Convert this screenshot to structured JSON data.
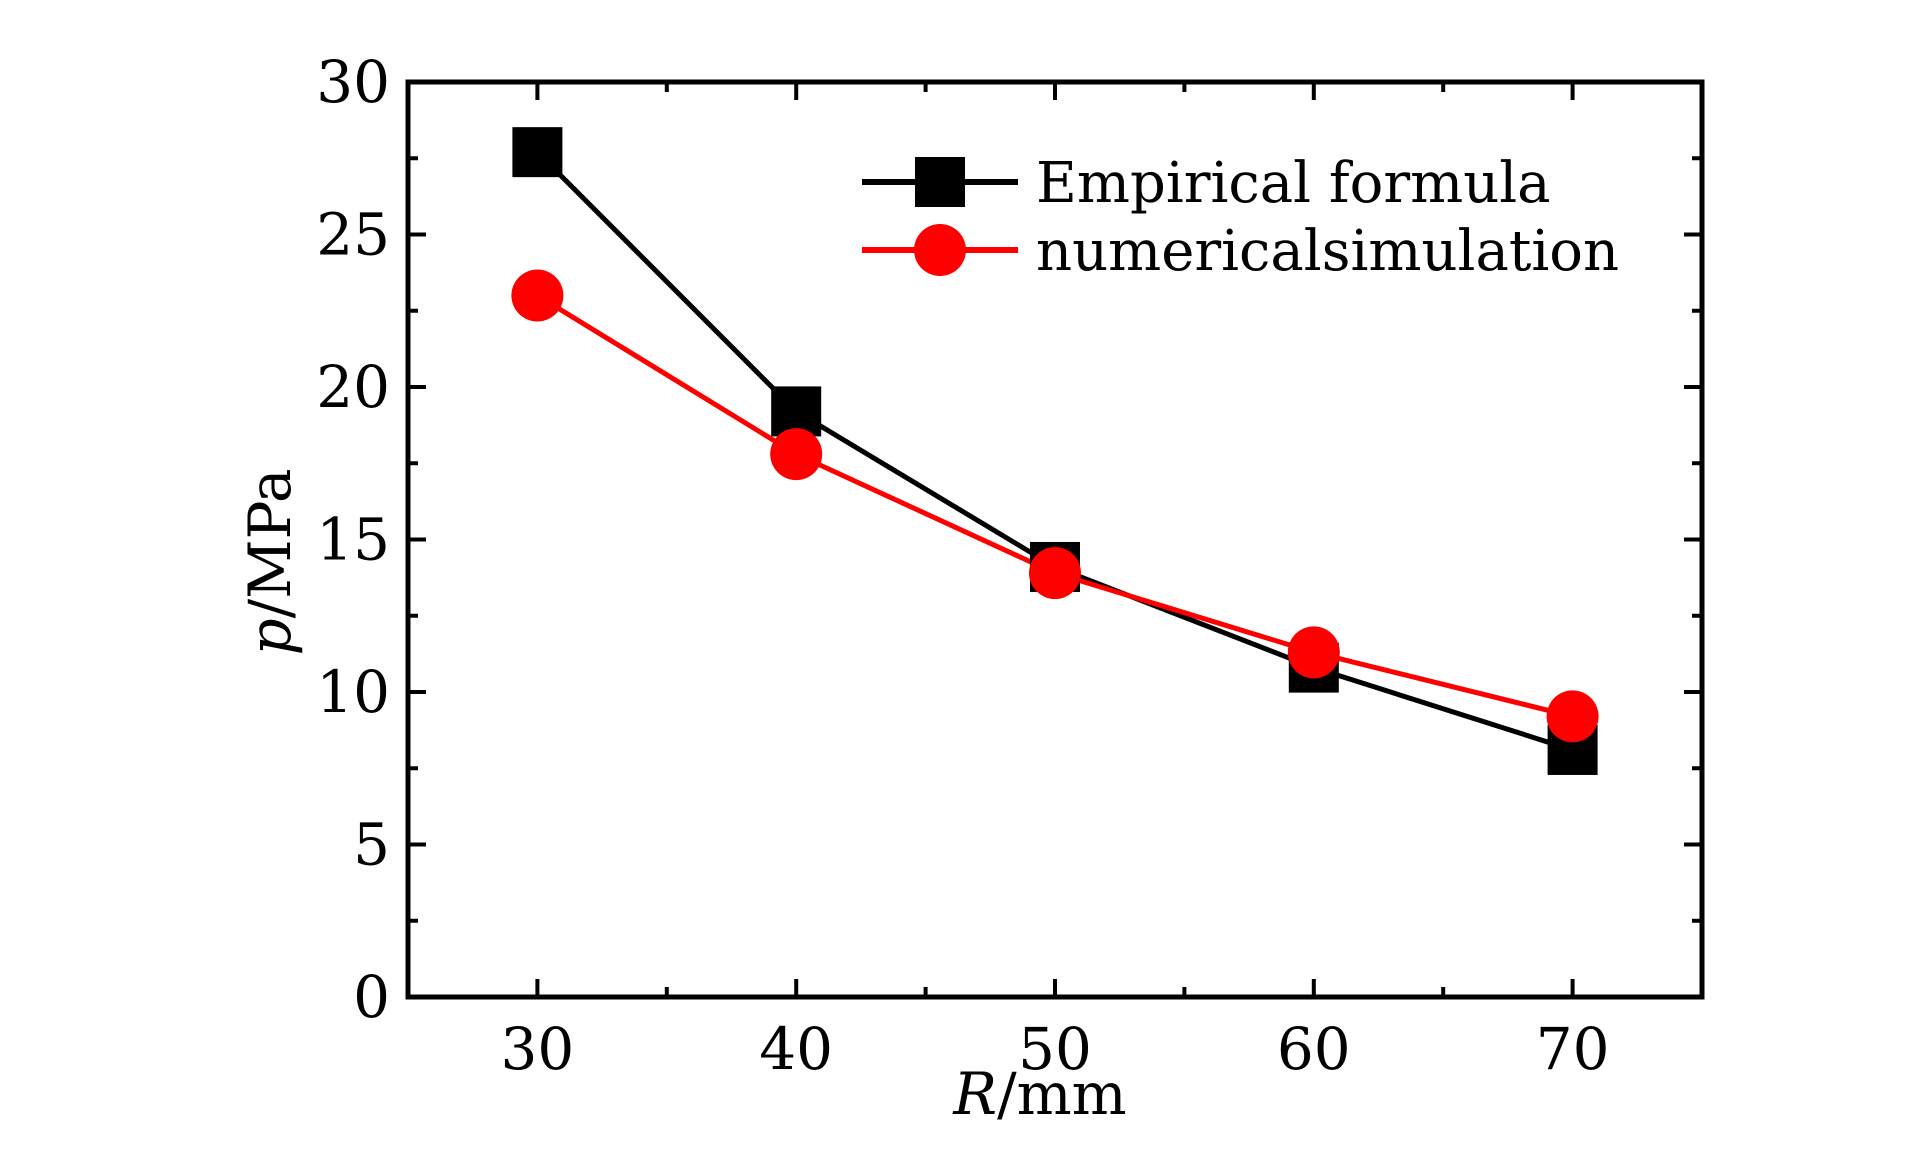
{
  "chart_data": {
    "type": "line",
    "title": "",
    "xlabel": {
      "italic": "R",
      "rest": "/mm"
    },
    "ylabel": {
      "italic": "p",
      "rest": "/MPa"
    },
    "xlim": [
      25,
      75
    ],
    "ylim": [
      0,
      30
    ],
    "x_ticks": [
      30,
      40,
      50,
      60,
      70
    ],
    "y_ticks": [
      0,
      5,
      10,
      15,
      20,
      25,
      30
    ],
    "x": [
      30,
      40,
      50,
      60,
      70
    ],
    "series": [
      {
        "name": "Empirical formula",
        "color": "#000000",
        "marker": "square",
        "values": [
          27.7,
          19.2,
          14.1,
          10.8,
          8.1
        ]
      },
      {
        "name": "numericalsimulation",
        "color": "#ff0000",
        "marker": "circle",
        "values": [
          23.0,
          17.8,
          13.9,
          11.3,
          9.2
        ]
      }
    ],
    "legend_position": "top-right",
    "grid": false
  }
}
